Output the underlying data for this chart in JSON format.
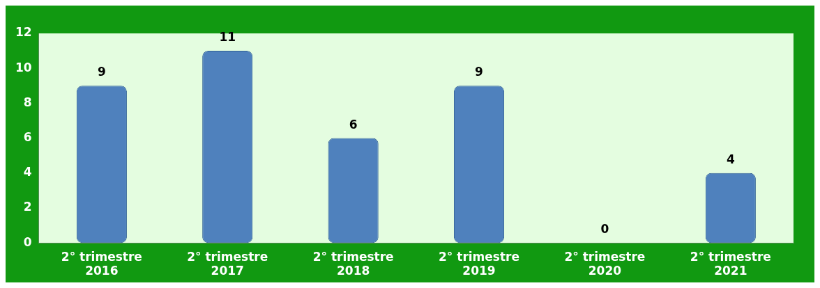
{
  "chart_data": {
    "type": "bar",
    "categories": [
      "2° trimestre 2016",
      "2° trimestre 2017",
      "2° trimestre 2018",
      "2° trimestre 2019",
      "2° trimestre 2020",
      "2° trimestre 2021"
    ],
    "values": [
      9,
      11,
      6,
      9,
      0,
      4
    ],
    "color": "#4f81bd",
    "ylim": [
      0,
      12
    ],
    "yticks": [
      0,
      2,
      4,
      6,
      8,
      10,
      12
    ],
    "data_labels": true
  }
}
